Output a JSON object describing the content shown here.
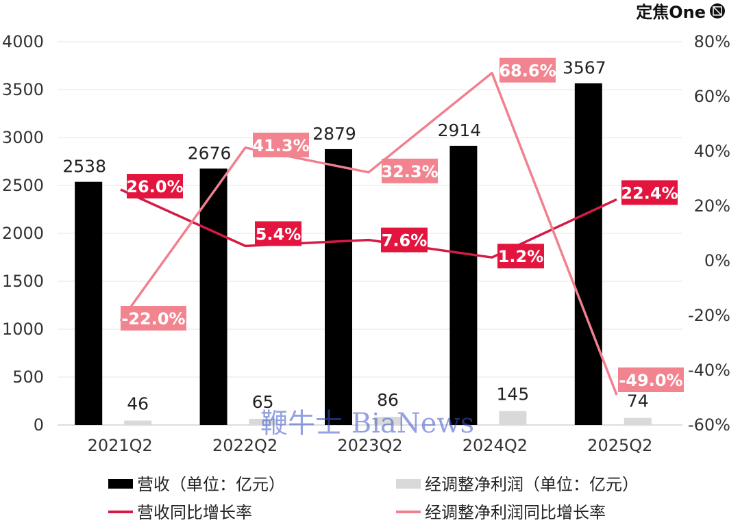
{
  "brand": {
    "text": "定焦One",
    "logo_icon": "dingjiao-logo-icon"
  },
  "watermark": "鞭牛士 BiaNews",
  "chart_data": {
    "type": "bar",
    "categories": [
      "2021Q2",
      "2022Q2",
      "2023Q2",
      "2024Q2",
      "2025Q2"
    ],
    "left_axis": {
      "ylim": [
        0,
        4000
      ],
      "ticks": [
        "0",
        "500",
        "1000",
        "1500",
        "2000",
        "2500",
        "3000",
        "3500",
        "4000"
      ]
    },
    "right_axis": {
      "ylim": [
        -60,
        80
      ],
      "ticks": [
        "-60%",
        "-40%",
        "-20%",
        "0%",
        "20%",
        "40%",
        "60%",
        "80%"
      ]
    },
    "series": [
      {
        "name": "营收（单位：亿元）",
        "type": "bar",
        "axis": "left",
        "color": "#000000",
        "values": [
          2538,
          2676,
          2879,
          2914,
          3567
        ],
        "labels": [
          "2538",
          "2676",
          "2879",
          "2914",
          "3567"
        ]
      },
      {
        "name": "经调整净利润（单位：亿元）",
        "type": "bar",
        "axis": "left",
        "color": "#d9d9d9",
        "values": [
          46,
          65,
          86,
          145,
          74
        ],
        "labels": [
          "46",
          "65",
          "86",
          "145",
          "74"
        ]
      },
      {
        "name": "营收同比增长率",
        "type": "line",
        "axis": "right",
        "color": "#d41a45",
        "values": [
          26.0,
          5.4,
          7.6,
          1.2,
          22.4
        ],
        "labels": [
          "26.0%",
          "5.4%",
          "7.6%",
          "1.2%",
          "22.4%"
        ]
      },
      {
        "name": "经调整净利润同比增长率",
        "type": "line",
        "axis": "right",
        "color": "#f08090",
        "values": [
          -22.0,
          41.3,
          32.3,
          68.6,
          -49.0
        ],
        "labels": [
          "-22.0%",
          "41.3%",
          "32.3%",
          "68.6%",
          "-49.0%"
        ]
      }
    ],
    "grid": true,
    "legend_position": "bottom"
  }
}
